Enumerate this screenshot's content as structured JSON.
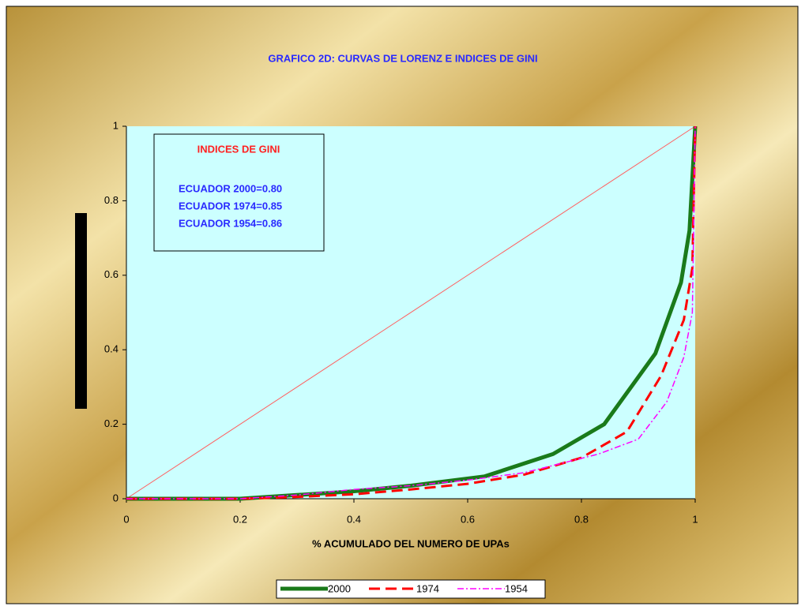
{
  "chart_data": {
    "type": "line",
    "title": "GRAFICO 2D: CURVAS DE LORENZ E INDICES DE GINI",
    "xlabel": "% ACUMULADO DEL  NUMERO DE UPAs",
    "xlim": [
      0,
      1
    ],
    "xticks": [
      0,
      0.2,
      0.4,
      0.6,
      0.8,
      1
    ],
    "ylim": [
      0,
      1
    ],
    "yticks": [
      0,
      0.2,
      0.4,
      0.6,
      0.8,
      1
    ],
    "gini_box": {
      "title": "INDICES DE GINI",
      "lines": [
        "ECUADOR 2000=0.80",
        "ECUADOR 1974=0.85",
        "ECUADOR 1954=0.86"
      ]
    },
    "series": [
      {
        "color": "#ff6060",
        "width": 1,
        "style": "solid",
        "x": [
          0,
          1
        ],
        "values": [
          0,
          1
        ]
      },
      {
        "name": "2000",
        "color": "#1a7a1a",
        "width": 5,
        "style": "solid",
        "x": [
          0,
          0.2,
          0.3,
          0.4,
          0.5,
          0.63,
          0.75,
          0.84,
          0.93,
          0.975,
          0.99,
          1
        ],
        "values": [
          0,
          0,
          0.01,
          0.02,
          0.035,
          0.06,
          0.12,
          0.2,
          0.39,
          0.58,
          0.72,
          1
        ]
      },
      {
        "name": "1974",
        "color": "#ff0000",
        "width": 3,
        "style": "dashed",
        "x": [
          0,
          0.2,
          0.3,
          0.4,
          0.5,
          0.6,
          0.7,
          0.8,
          0.88,
          0.94,
          0.98,
          0.995,
          1
        ],
        "values": [
          0,
          0,
          0.005,
          0.012,
          0.025,
          0.04,
          0.065,
          0.11,
          0.18,
          0.33,
          0.48,
          0.62,
          1
        ]
      },
      {
        "name": "1954",
        "color": "#ff00ff",
        "width": 1.5,
        "style": "dashdot",
        "x": [
          0,
          0.2,
          0.3,
          0.4,
          0.5,
          0.6,
          0.7,
          0.83,
          0.9,
          0.95,
          0.98,
          0.995,
          1
        ],
        "values": [
          0,
          0,
          0.01,
          0.025,
          0.035,
          0.05,
          0.07,
          0.12,
          0.16,
          0.26,
          0.38,
          0.5,
          1
        ]
      }
    ]
  }
}
